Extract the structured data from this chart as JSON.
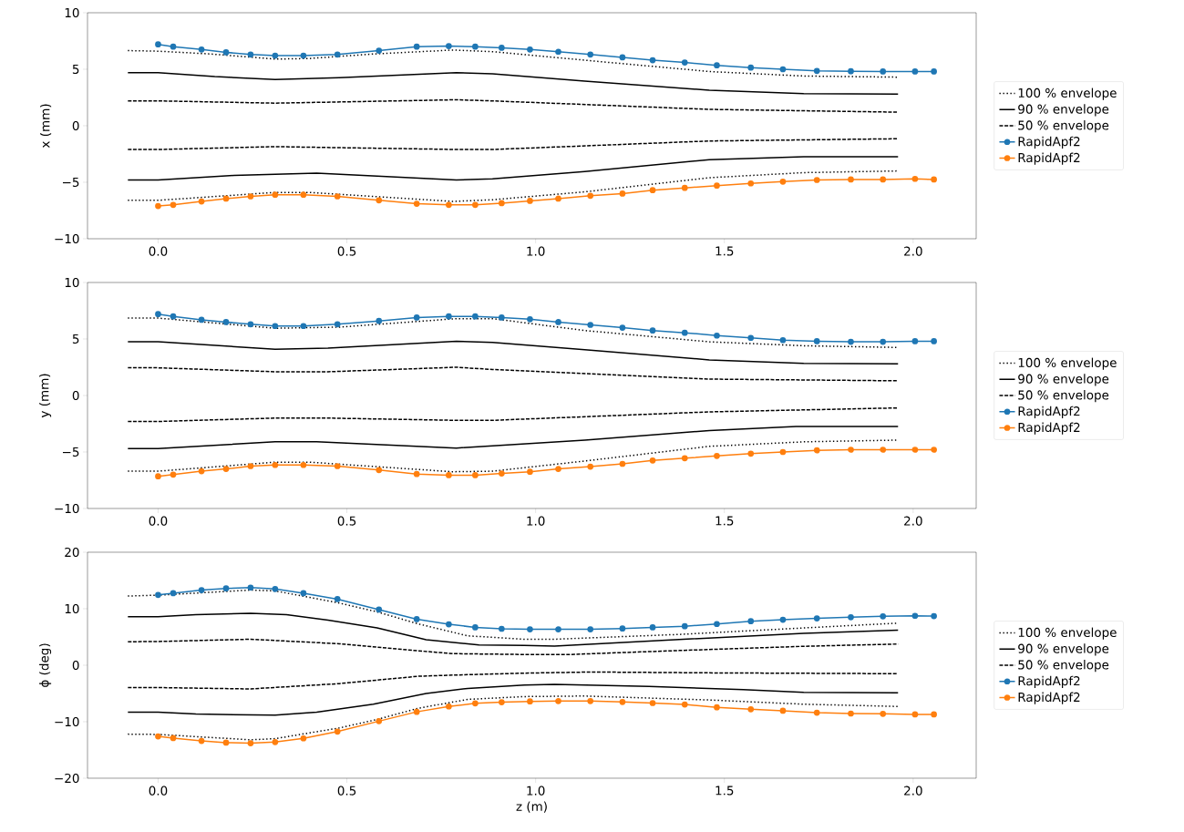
{
  "chart_data": [
    {
      "type": "line",
      "ylabel": "x (mm)",
      "xlim": [
        -0.187,
        2.167
      ],
      "ylim": [
        -10,
        10
      ],
      "legend": "right",
      "xticks": [
        {
          "value": 0,
          "label": "0.0"
        },
        {
          "value": 0.5,
          "label": "0.5"
        },
        {
          "value": 1,
          "label": "1.0"
        },
        {
          "value": 1.5,
          "label": "1.5"
        },
        {
          "value": 2,
          "label": "2.0"
        }
      ],
      "yticks": [
        {
          "value": -10,
          "label": "−10"
        },
        {
          "value": -5,
          "label": "−5"
        },
        0,
        5,
        10
      ],
      "series": [
        {
          "name": "100 % envelope",
          "color": "#000000",
          "line_style": "dotted",
          "marker": "none",
          "x": [
            -0.08,
            0,
            0.14,
            0.31,
            0.4,
            0.57,
            0.78,
            0.89,
            1.13,
            1.46,
            1.71,
            1.96
          ],
          "values": [
            6.65,
            6.6,
            6.35,
            5.9,
            5.95,
            6.35,
            6.7,
            6.55,
            5.8,
            4.8,
            4.4,
            4.3
          ]
        },
        {
          "name": "90 % envelope",
          "color": "#000000",
          "line_style": "solid",
          "marker": "none",
          "x": [
            -0.08,
            0,
            0.15,
            0.31,
            0.48,
            0.79,
            0.886,
            1.13,
            1.46,
            1.71,
            1.96
          ],
          "values": [
            4.7,
            4.7,
            4.35,
            4.1,
            4.25,
            4.7,
            4.6,
            3.95,
            3.15,
            2.85,
            2.8
          ]
        },
        {
          "name": "50 % envelope",
          "color": "#000000",
          "line_style": "dashed",
          "marker": "none",
          "x": [
            -0.08,
            0,
            0.31,
            0.79,
            0.886,
            1.46,
            1.96
          ],
          "values": [
            2.2,
            2.2,
            2.0,
            2.3,
            2.2,
            1.45,
            1.2
          ]
        },
        {
          "name": "RapidApf2",
          "color": "#1f77b4",
          "line_style": "solid",
          "marker": "circle",
          "x": [
            0,
            0.04,
            0.115,
            0.18,
            0.245,
            0.31,
            0.385,
            0.475,
            0.585,
            0.685,
            0.77,
            0.84,
            0.91,
            0.985,
            1.06,
            1.145,
            1.23,
            1.31,
            1.395,
            1.48,
            1.57,
            1.655,
            1.745,
            1.835,
            1.92,
            2.005,
            2.055
          ],
          "values": [
            7.2,
            7.0,
            6.75,
            6.5,
            6.3,
            6.2,
            6.2,
            6.3,
            6.65,
            7.0,
            7.05,
            7.0,
            6.9,
            6.75,
            6.55,
            6.3,
            6.05,
            5.8,
            5.6,
            5.35,
            5.15,
            5.0,
            4.85,
            4.82,
            4.8,
            4.8,
            4.8
          ]
        },
        {
          "name": "RapidApf2",
          "color": "#ff7f0e",
          "line_style": "solid",
          "marker": "circle",
          "x": [
            0,
            0.04,
            0.115,
            0.18,
            0.245,
            0.31,
            0.385,
            0.475,
            0.585,
            0.685,
            0.77,
            0.84,
            0.91,
            0.985,
            1.06,
            1.145,
            1.23,
            1.31,
            1.395,
            1.48,
            1.57,
            1.655,
            1.745,
            1.835,
            1.92,
            2.005,
            2.055
          ],
          "values": [
            -7.1,
            -7.0,
            -6.7,
            -6.45,
            -6.25,
            -6.1,
            -6.1,
            -6.25,
            -6.6,
            -6.9,
            -7.0,
            -7.0,
            -6.85,
            -6.65,
            -6.45,
            -6.2,
            -6.0,
            -5.7,
            -5.5,
            -5.3,
            -5.1,
            -4.95,
            -4.8,
            -4.75,
            -4.75,
            -4.7,
            -4.75
          ]
        },
        {
          "color": "#000000",
          "line_style": "dotted",
          "marker": "none",
          "x": [
            -0.08,
            0,
            0.31,
            0.4,
            0.78,
            0.886,
            1.13,
            1.46,
            1.71,
            1.96
          ],
          "values": [
            -6.6,
            -6.6,
            -5.9,
            -5.9,
            -6.7,
            -6.55,
            -5.85,
            -4.6,
            -4.15,
            -4.0
          ]
        },
        {
          "color": "#000000",
          "line_style": "solid",
          "marker": "none",
          "x": [
            -0.08,
            0,
            0.2,
            0.42,
            0.79,
            0.886,
            1.13,
            1.46,
            1.71,
            1.96
          ],
          "values": [
            -4.8,
            -4.8,
            -4.4,
            -4.2,
            -4.8,
            -4.7,
            -4.05,
            -3.0,
            -2.75,
            -2.75
          ]
        },
        {
          "color": "#000000",
          "line_style": "dashed",
          "marker": "none",
          "x": [
            -0.08,
            0,
            0.31,
            0.79,
            0.886,
            1.46,
            1.96
          ],
          "values": [
            -2.1,
            -2.1,
            -1.85,
            -2.1,
            -2.1,
            -1.35,
            -1.15
          ]
        }
      ]
    },
    {
      "type": "line",
      "ylabel": "y (mm)",
      "xlim": [
        -0.187,
        2.167
      ],
      "ylim": [
        -10,
        10
      ],
      "legend": "right",
      "xticks": [
        {
          "value": 0,
          "label": "0.0"
        },
        {
          "value": 0.5,
          "label": "0.5"
        },
        {
          "value": 1,
          "label": "1.0"
        },
        {
          "value": 1.5,
          "label": "1.5"
        },
        {
          "value": 2,
          "label": "2.0"
        }
      ],
      "yticks": [
        {
          "value": -10,
          "label": "−10"
        },
        {
          "value": -5,
          "label": "−5"
        },
        0,
        5,
        10
      ],
      "series": [
        {
          "name": "100 % envelope",
          "color": "#000000",
          "line_style": "dotted",
          "marker": "none",
          "x": [
            -0.08,
            0,
            0.31,
            0.48,
            0.79,
            0.886,
            1.13,
            1.46,
            1.71,
            1.96
          ],
          "values": [
            6.85,
            6.85,
            5.95,
            6.05,
            6.8,
            6.8,
            5.75,
            4.75,
            4.4,
            4.25
          ]
        },
        {
          "name": "90 % envelope",
          "color": "#000000",
          "line_style": "solid",
          "marker": "none",
          "x": [
            -0.08,
            0,
            0.31,
            0.45,
            0.79,
            0.886,
            1.13,
            1.46,
            1.71,
            1.96
          ],
          "values": [
            4.75,
            4.75,
            4.1,
            4.2,
            4.8,
            4.7,
            4.05,
            3.15,
            2.85,
            2.8
          ]
        },
        {
          "name": "50 % envelope",
          "color": "#000000",
          "line_style": "dashed",
          "marker": "none",
          "x": [
            -0.08,
            0,
            0.31,
            0.45,
            0.79,
            0.886,
            1.46,
            1.96
          ],
          "values": [
            2.45,
            2.45,
            2.1,
            2.1,
            2.5,
            2.3,
            1.45,
            1.3
          ]
        },
        {
          "name": "RapidApf2",
          "color": "#1f77b4",
          "line_style": "solid",
          "marker": "circle",
          "x": [
            0,
            0.04,
            0.115,
            0.18,
            0.245,
            0.31,
            0.385,
            0.475,
            0.585,
            0.685,
            0.77,
            0.84,
            0.91,
            0.985,
            1.06,
            1.145,
            1.23,
            1.31,
            1.395,
            1.48,
            1.57,
            1.655,
            1.745,
            1.835,
            1.92,
            2.005,
            2.055
          ],
          "values": [
            7.2,
            7.0,
            6.7,
            6.5,
            6.3,
            6.15,
            6.15,
            6.3,
            6.6,
            6.9,
            7.0,
            7.0,
            6.9,
            6.75,
            6.5,
            6.25,
            6.0,
            5.75,
            5.55,
            5.3,
            5.1,
            4.9,
            4.8,
            4.75,
            4.75,
            4.8,
            4.8
          ]
        },
        {
          "name": "RapidApf2",
          "color": "#ff7f0e",
          "line_style": "solid",
          "marker": "circle",
          "x": [
            0,
            0.04,
            0.115,
            0.18,
            0.245,
            0.31,
            0.385,
            0.475,
            0.585,
            0.685,
            0.77,
            0.84,
            0.91,
            0.985,
            1.06,
            1.145,
            1.23,
            1.31,
            1.395,
            1.48,
            1.57,
            1.655,
            1.745,
            1.835,
            1.92,
            2.005,
            2.055
          ],
          "values": [
            -7.15,
            -7.0,
            -6.7,
            -6.5,
            -6.25,
            -6.15,
            -6.15,
            -6.25,
            -6.6,
            -6.95,
            -7.05,
            -7.05,
            -6.9,
            -6.75,
            -6.5,
            -6.3,
            -6.05,
            -5.75,
            -5.55,
            -5.35,
            -5.15,
            -5.0,
            -4.85,
            -4.8,
            -4.8,
            -4.8,
            -4.8
          ]
        },
        {
          "color": "#000000",
          "line_style": "dotted",
          "marker": "none",
          "x": [
            -0.08,
            0,
            0.31,
            0.4,
            0.78,
            0.886,
            1.13,
            1.46,
            1.71,
            1.96
          ],
          "values": [
            -6.7,
            -6.7,
            -5.9,
            -5.9,
            -6.75,
            -6.7,
            -5.8,
            -4.5,
            -4.1,
            -3.95
          ]
        },
        {
          "color": "#000000",
          "line_style": "solid",
          "marker": "none",
          "x": [
            -0.08,
            0,
            0.31,
            0.42,
            0.79,
            0.886,
            1.13,
            1.46,
            1.69,
            1.96
          ],
          "values": [
            -4.7,
            -4.7,
            -4.1,
            -4.1,
            -4.65,
            -4.45,
            -3.95,
            -3.1,
            -2.75,
            -2.75
          ]
        },
        {
          "color": "#000000",
          "line_style": "dashed",
          "marker": "none",
          "x": [
            -0.08,
            0,
            0.31,
            0.45,
            0.79,
            0.886,
            1.46,
            1.96
          ],
          "values": [
            -2.3,
            -2.3,
            -2.0,
            -2.0,
            -2.2,
            -2.2,
            -1.45,
            -1.1
          ]
        }
      ]
    },
    {
      "type": "line",
      "ylabel": "ϕ (deg)",
      "xlabel": "z (m)",
      "xlim": [
        -0.187,
        2.167
      ],
      "ylim": [
        -20,
        20
      ],
      "legend": "right",
      "xticks": [
        {
          "value": 0,
          "label": "0.0"
        },
        {
          "value": 0.5,
          "label": "0.5"
        },
        {
          "value": 1,
          "label": "1.0"
        },
        {
          "value": 1.5,
          "label": "1.5"
        },
        {
          "value": 2,
          "label": "2.0"
        }
      ],
      "yticks": [
        {
          "value": -20,
          "label": "−20"
        },
        {
          "value": -10,
          "label": "−10"
        },
        0,
        10,
        20
      ],
      "series": [
        {
          "name": "100 % envelope",
          "color": "#000000",
          "line_style": "dotted",
          "marker": "none",
          "x": [
            -0.08,
            0,
            0.245,
            0.31,
            0.48,
            0.58,
            0.69,
            0.82,
            0.97,
            1.05,
            1.38,
            1.71,
            1.96
          ],
          "values": [
            12.25,
            12.4,
            13.3,
            13.15,
            11.0,
            9.45,
            7.3,
            5.2,
            4.6,
            4.6,
            5.45,
            6.6,
            7.45
          ]
        },
        {
          "name": "90 % envelope",
          "color": "#000000",
          "line_style": "solid",
          "marker": "none",
          "x": [
            -0.08,
            0,
            0.1,
            0.245,
            0.34,
            0.45,
            0.58,
            0.71,
            0.85,
            0.97,
            1.05,
            1.38,
            1.71,
            1.96
          ],
          "values": [
            8.6,
            8.6,
            8.95,
            9.2,
            8.95,
            8.0,
            6.6,
            4.5,
            3.6,
            3.5,
            3.4,
            4.55,
            5.65,
            6.2
          ]
        },
        {
          "name": "50 % envelope",
          "color": "#000000",
          "line_style": "dashed",
          "marker": "none",
          "x": [
            -0.08,
            0,
            0.245,
            0.48,
            0.69,
            0.78,
            0.97,
            1.09,
            1.38,
            1.71,
            1.96
          ],
          "values": [
            4.15,
            4.2,
            4.6,
            3.8,
            2.55,
            2.05,
            1.9,
            1.9,
            2.6,
            3.35,
            3.75
          ]
        },
        {
          "name": "RapidApf2",
          "color": "#1f77b4",
          "line_style": "solid",
          "marker": "circle",
          "x": [
            0,
            0.04,
            0.115,
            0.18,
            0.245,
            0.31,
            0.385,
            0.475,
            0.585,
            0.685,
            0.77,
            0.84,
            0.91,
            0.985,
            1.06,
            1.145,
            1.23,
            1.31,
            1.395,
            1.48,
            1.57,
            1.655,
            1.745,
            1.835,
            1.92,
            2.005,
            2.055
          ],
          "values": [
            12.45,
            12.75,
            13.3,
            13.6,
            13.75,
            13.5,
            12.75,
            11.7,
            9.85,
            8.15,
            7.25,
            6.7,
            6.45,
            6.35,
            6.35,
            6.35,
            6.5,
            6.7,
            6.9,
            7.3,
            7.8,
            8.05,
            8.3,
            8.5,
            8.65,
            8.75,
            8.7
          ]
        },
        {
          "name": "RapidApf2",
          "color": "#ff7f0e",
          "line_style": "solid",
          "marker": "circle",
          "x": [
            0,
            0.04,
            0.115,
            0.18,
            0.245,
            0.31,
            0.385,
            0.475,
            0.585,
            0.685,
            0.77,
            0.84,
            0.91,
            0.985,
            1.06,
            1.145,
            1.23,
            1.31,
            1.395,
            1.48,
            1.57,
            1.655,
            1.745,
            1.835,
            1.92,
            2.005,
            2.055
          ],
          "values": [
            -12.6,
            -12.9,
            -13.4,
            -13.7,
            -13.8,
            -13.6,
            -12.95,
            -11.75,
            -9.9,
            -8.25,
            -7.3,
            -6.75,
            -6.55,
            -6.4,
            -6.35,
            -6.35,
            -6.5,
            -6.7,
            -6.95,
            -7.45,
            -7.8,
            -8.05,
            -8.4,
            -8.55,
            -8.6,
            -8.7,
            -8.7
          ]
        },
        {
          "color": "#000000",
          "line_style": "dotted",
          "marker": "none",
          "x": [
            -0.08,
            0,
            0.245,
            0.31,
            0.48,
            0.58,
            0.69,
            0.82,
            0.97,
            1.13,
            1.46,
            1.71,
            1.96
          ],
          "values": [
            -12.2,
            -12.25,
            -13.2,
            -13.0,
            -11.1,
            -9.6,
            -7.6,
            -6.05,
            -5.55,
            -5.45,
            -6.15,
            -6.9,
            -7.3
          ]
        },
        {
          "color": "#000000",
          "line_style": "solid",
          "marker": "none",
          "x": [
            -0.08,
            0,
            0.1,
            0.31,
            0.42,
            0.57,
            0.71,
            0.82,
            0.97,
            1.05,
            1.3,
            1.55,
            1.71,
            1.96
          ],
          "values": [
            -8.3,
            -8.3,
            -8.65,
            -8.85,
            -8.3,
            -6.9,
            -5.0,
            -4.1,
            -3.5,
            -3.4,
            -3.75,
            -4.3,
            -4.8,
            -4.9
          ]
        },
        {
          "color": "#000000",
          "line_style": "dashed",
          "marker": "none",
          "x": [
            -0.08,
            0,
            0.245,
            0.48,
            0.69,
            0.78,
            0.97,
            1.15,
            1.46,
            1.96
          ],
          "values": [
            -3.95,
            -3.95,
            -4.2,
            -3.25,
            -1.95,
            -1.75,
            -1.4,
            -1.2,
            -1.35,
            -1.5
          ]
        }
      ]
    }
  ]
}
